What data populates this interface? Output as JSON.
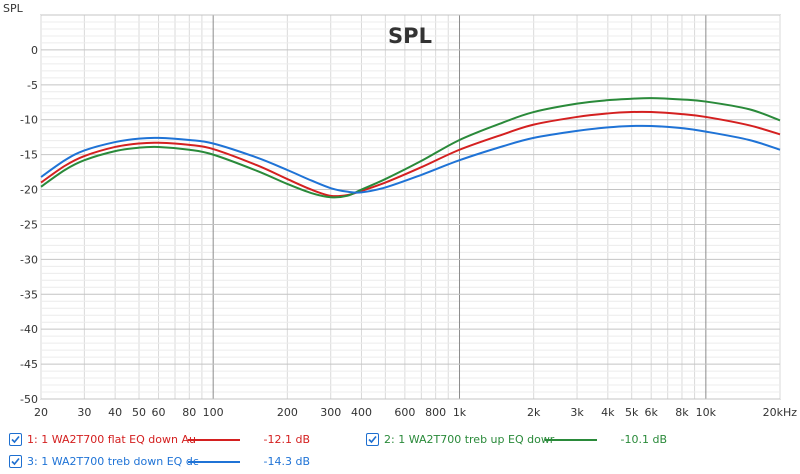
{
  "chart_data": {
    "type": "line",
    "title": "SPL",
    "ylabel": "SPL",
    "xlabel": "",
    "x_scale": "log",
    "xlim": [
      20,
      20000
    ],
    "ylim": [
      -50,
      5
    ],
    "grid": true,
    "x_ticks": [
      {
        "value": 20,
        "label": "20"
      },
      {
        "value": 30,
        "label": "30"
      },
      {
        "value": 40,
        "label": "40"
      },
      {
        "value": 50,
        "label": "50"
      },
      {
        "value": 60,
        "label": "60"
      },
      {
        "value": 80,
        "label": "80"
      },
      {
        "value": 100,
        "label": "100"
      },
      {
        "value": 200,
        "label": "200"
      },
      {
        "value": 300,
        "label": "300"
      },
      {
        "value": 400,
        "label": "400"
      },
      {
        "value": 600,
        "label": "600"
      },
      {
        "value": 800,
        "label": "800"
      },
      {
        "value": 1000,
        "label": "1k"
      },
      {
        "value": 2000,
        "label": "2k"
      },
      {
        "value": 3000,
        "label": "3k"
      },
      {
        "value": 4000,
        "label": "4k"
      },
      {
        "value": 5000,
        "label": "5k"
      },
      {
        "value": 6000,
        "label": "6k"
      },
      {
        "value": 8000,
        "label": "8k"
      },
      {
        "value": 10000,
        "label": "10k"
      },
      {
        "value": 20000,
        "label": "20kHz"
      }
    ],
    "y_ticks": [
      {
        "value": 0,
        "label": "0"
      },
      {
        "value": -5,
        "label": "-5"
      },
      {
        "value": -10,
        "label": "-10"
      },
      {
        "value": -15,
        "label": "-15"
      },
      {
        "value": -20,
        "label": "-20"
      },
      {
        "value": -25,
        "label": "-25"
      },
      {
        "value": -30,
        "label": "-30"
      },
      {
        "value": -35,
        "label": "-35"
      },
      {
        "value": -40,
        "label": "-40"
      },
      {
        "value": -45,
        "label": "-45"
      },
      {
        "value": -50,
        "label": "-50"
      }
    ],
    "series": [
      {
        "name": "1: 1 WA2T700 flat EQ down Au",
        "value_label": "-12.1 dB",
        "color": "#d42020",
        "points": [
          {
            "x": 20,
            "y": -19.0
          },
          {
            "x": 25,
            "y": -16.6
          },
          {
            "x": 30,
            "y": -15.2
          },
          {
            "x": 40,
            "y": -13.9
          },
          {
            "x": 50,
            "y": -13.4
          },
          {
            "x": 60,
            "y": -13.3
          },
          {
            "x": 80,
            "y": -13.6
          },
          {
            "x": 100,
            "y": -14.2
          },
          {
            "x": 150,
            "y": -16.5
          },
          {
            "x": 200,
            "y": -18.5
          },
          {
            "x": 250,
            "y": -20.0
          },
          {
            "x": 300,
            "y": -20.9
          },
          {
            "x": 350,
            "y": -20.8
          },
          {
            "x": 400,
            "y": -20.2
          },
          {
            "x": 500,
            "y": -19.0
          },
          {
            "x": 700,
            "y": -16.8
          },
          {
            "x": 1000,
            "y": -14.3
          },
          {
            "x": 1500,
            "y": -12.1
          },
          {
            "x": 2000,
            "y": -10.7
          },
          {
            "x": 3000,
            "y": -9.6
          },
          {
            "x": 4000,
            "y": -9.1
          },
          {
            "x": 5000,
            "y": -8.9
          },
          {
            "x": 6000,
            "y": -8.9
          },
          {
            "x": 8000,
            "y": -9.2
          },
          {
            "x": 10000,
            "y": -9.6
          },
          {
            "x": 15000,
            "y": -10.8
          },
          {
            "x": 20000,
            "y": -12.1
          }
        ]
      },
      {
        "name": "2: 1 WA2T700 treb up EQ dowr",
        "value_label": "-10.1 dB",
        "color": "#2a8a3a",
        "points": [
          {
            "x": 20,
            "y": -19.6
          },
          {
            "x": 25,
            "y": -17.2
          },
          {
            "x": 30,
            "y": -15.8
          },
          {
            "x": 40,
            "y": -14.5
          },
          {
            "x": 50,
            "y": -14.0
          },
          {
            "x": 60,
            "y": -13.9
          },
          {
            "x": 80,
            "y": -14.3
          },
          {
            "x": 100,
            "y": -15.0
          },
          {
            "x": 150,
            "y": -17.3
          },
          {
            "x": 200,
            "y": -19.2
          },
          {
            "x": 250,
            "y": -20.5
          },
          {
            "x": 300,
            "y": -21.1
          },
          {
            "x": 350,
            "y": -20.9
          },
          {
            "x": 400,
            "y": -20.0
          },
          {
            "x": 500,
            "y": -18.5
          },
          {
            "x": 700,
            "y": -15.9
          },
          {
            "x": 1000,
            "y": -12.9
          },
          {
            "x": 1500,
            "y": -10.4
          },
          {
            "x": 2000,
            "y": -8.9
          },
          {
            "x": 3000,
            "y": -7.7
          },
          {
            "x": 4000,
            "y": -7.2
          },
          {
            "x": 5000,
            "y": -7.0
          },
          {
            "x": 6000,
            "y": -6.9
          },
          {
            "x": 8000,
            "y": -7.1
          },
          {
            "x": 10000,
            "y": -7.4
          },
          {
            "x": 15000,
            "y": -8.5
          },
          {
            "x": 20000,
            "y": -10.1
          }
        ]
      },
      {
        "name": "3: 1 WA2T700 treb down EQ dc",
        "value_label": "-14.3 dB",
        "color": "#1f73d6",
        "points": [
          {
            "x": 20,
            "y": -18.2
          },
          {
            "x": 25,
            "y": -15.8
          },
          {
            "x": 30,
            "y": -14.4
          },
          {
            "x": 40,
            "y": -13.2
          },
          {
            "x": 50,
            "y": -12.7
          },
          {
            "x": 60,
            "y": -12.6
          },
          {
            "x": 80,
            "y": -12.9
          },
          {
            "x": 100,
            "y": -13.4
          },
          {
            "x": 150,
            "y": -15.4
          },
          {
            "x": 200,
            "y": -17.2
          },
          {
            "x": 250,
            "y": -18.7
          },
          {
            "x": 300,
            "y": -19.8
          },
          {
            "x": 350,
            "y": -20.3
          },
          {
            "x": 400,
            "y": -20.4
          },
          {
            "x": 500,
            "y": -19.7
          },
          {
            "x": 700,
            "y": -17.9
          },
          {
            "x": 1000,
            "y": -15.8
          },
          {
            "x": 1500,
            "y": -13.8
          },
          {
            "x": 2000,
            "y": -12.6
          },
          {
            "x": 3000,
            "y": -11.6
          },
          {
            "x": 4000,
            "y": -11.1
          },
          {
            "x": 5000,
            "y": -10.9
          },
          {
            "x": 6000,
            "y": -10.9
          },
          {
            "x": 8000,
            "y": -11.2
          },
          {
            "x": 10000,
            "y": -11.7
          },
          {
            "x": 15000,
            "y": -12.9
          },
          {
            "x": 20000,
            "y": -14.3
          }
        ]
      }
    ]
  }
}
